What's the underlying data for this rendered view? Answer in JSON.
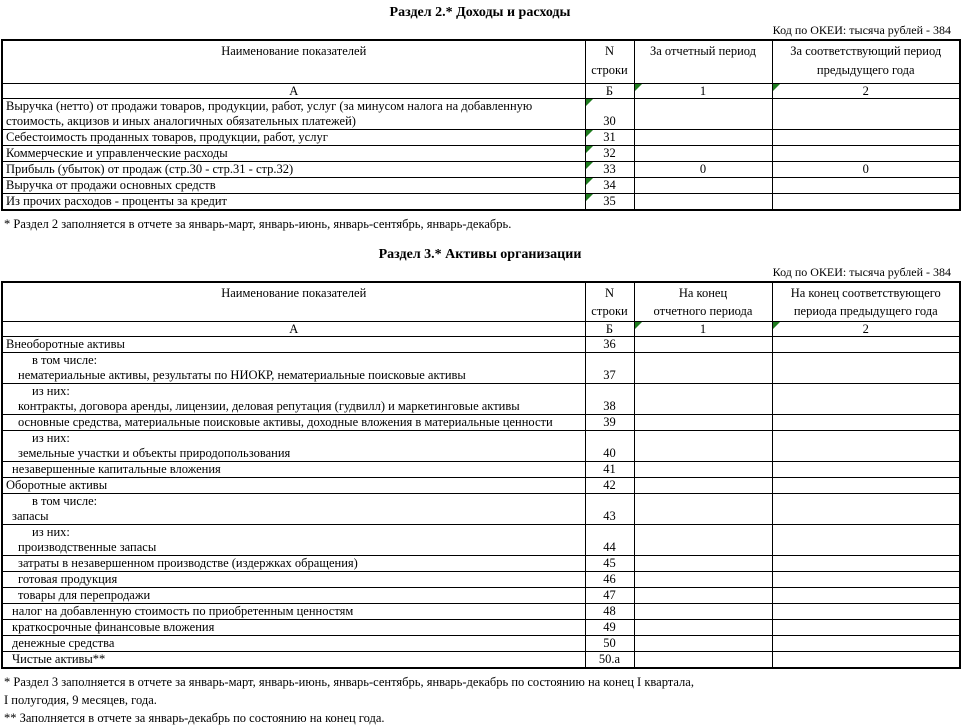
{
  "colors": {
    "triangle_green": "#1e7b1e",
    "border": "#000000",
    "background": "#ffffff",
    "text": "#000000"
  },
  "section2": {
    "title": "Раздел 2.* Доходы и расходы",
    "okei_note": "Код по ОКЕИ: тысяча рублей - 384",
    "columns": {
      "name": "Наименование показателей",
      "code_l1": "N",
      "code_l2": "строки",
      "col1_l1": "За отчетный период",
      "col1_l2": "",
      "col2_l1": "За соответствующий период",
      "col2_l2": "предыдущего года"
    },
    "letter_row": [
      "А",
      "Б",
      "1",
      "2"
    ],
    "code_triangles": true,
    "rows": [
      {
        "lines": [
          {
            "t": "Выручка (нетто) от продажи товаров, продукции, работ, услуг (за минусом налога на добавленную",
            "i": 0
          },
          {
            "t": "стоимость, акцизов и иных аналогичных обязательных платежей)",
            "i": 0
          }
        ],
        "code": "30",
        "v1": "",
        "v2": ""
      },
      {
        "lines": [
          {
            "t": "Себестоимость проданных товаров, продукции, работ, услуг",
            "i": 0
          }
        ],
        "code": "31",
        "v1": "",
        "v2": ""
      },
      {
        "lines": [
          {
            "t": "Коммерческие и управленческие расходы",
            "i": 0
          }
        ],
        "code": "32",
        "v1": "",
        "v2": ""
      },
      {
        "lines": [
          {
            "t": "Прибыль (убыток) от продаж (стр.30 - стр.31 - стр.32)",
            "i": 0
          }
        ],
        "code": "33",
        "v1": "0",
        "v2": "0"
      },
      {
        "lines": [
          {
            "t": "Выручка от продажи основных средств",
            "i": 0
          }
        ],
        "code": "34",
        "v1": "",
        "v2": ""
      },
      {
        "lines": [
          {
            "t": "Из прочих расходов - проценты за кредит",
            "i": 0
          }
        ],
        "code": "35",
        "v1": "",
        "v2": ""
      }
    ],
    "footnote_lines": [
      "* Раздел 2 заполняется в отчете за январь-март, январь-июнь, январь-сентябрь, январь-декабрь."
    ]
  },
  "section3": {
    "title": "Раздел 3.* Активы организации",
    "okei_note": "Код по ОКЕИ: тысяча рублей - 384",
    "columns": {
      "name": "Наименование показателей",
      "code_l1": "N",
      "code_l2": "строки",
      "col1_l1": "На конец",
      "col1_l2": "отчетного периода",
      "col2_l1": "На конец  соответствующего",
      "col2_l2": "периода предыдущего года"
    },
    "letter_row": [
      "А",
      "Б",
      "1",
      "2"
    ],
    "code_triangles": false,
    "rows": [
      {
        "lines": [
          {
            "t": "Внеоборотные активы",
            "i": 0
          }
        ],
        "code": "36",
        "v1": "",
        "v2": ""
      },
      {
        "lines": [
          {
            "t": "в том числе:",
            "i": 3
          },
          {
            "t": "нематериальные активы, результаты по НИОКР, нематериальные поисковые активы",
            "i": 2
          }
        ],
        "code": "37",
        "v1": "",
        "v2": ""
      },
      {
        "lines": [
          {
            "t": "из них:",
            "i": 3
          },
          {
            "t": "контракты, договора аренды, лицензии, деловая репутация (гудвилл) и маркетинговые активы",
            "i": 2
          }
        ],
        "code": "38",
        "v1": "",
        "v2": ""
      },
      {
        "lines": [
          {
            "t": "основные средства, материальные поисковые активы, доходные вложения в материальные ценности",
            "i": 2
          }
        ],
        "code": "39",
        "v1": "",
        "v2": ""
      },
      {
        "lines": [
          {
            "t": "из них:",
            "i": 3
          },
          {
            "t": "земельные участки и объекты природопользования",
            "i": 2
          }
        ],
        "code": "40",
        "v1": "",
        "v2": ""
      },
      {
        "lines": [
          {
            "t": "незавершенные капитальные вложения",
            "i": 1
          }
        ],
        "code": "41",
        "v1": "",
        "v2": ""
      },
      {
        "lines": [
          {
            "t": "Оборотные активы",
            "i": 0
          }
        ],
        "code": "42",
        "v1": "",
        "v2": ""
      },
      {
        "lines": [
          {
            "t": "в том числе:",
            "i": 3
          },
          {
            "t": "запасы",
            "i": 1
          }
        ],
        "code": "43",
        "v1": "",
        "v2": ""
      },
      {
        "lines": [
          {
            "t": "из них:",
            "i": 3
          },
          {
            "t": "производственные запасы",
            "i": 2
          }
        ],
        "code": "44",
        "v1": "",
        "v2": ""
      },
      {
        "lines": [
          {
            "t": "затраты в незавершенном производстве (издержках обращения)",
            "i": 2
          }
        ],
        "code": "45",
        "v1": "",
        "v2": ""
      },
      {
        "lines": [
          {
            "t": "готовая продукция",
            "i": 2
          }
        ],
        "code": "46",
        "v1": "",
        "v2": ""
      },
      {
        "lines": [
          {
            "t": "товары для перепродажи",
            "i": 2
          }
        ],
        "code": "47",
        "v1": "",
        "v2": ""
      },
      {
        "lines": [
          {
            "t": "налог на добавленную стоимость по приобретенным ценностям",
            "i": 1
          }
        ],
        "code": "48",
        "v1": "",
        "v2": ""
      },
      {
        "lines": [
          {
            "t": "краткосрочные финансовые вложения",
            "i": 1
          }
        ],
        "code": "49",
        "v1": "",
        "v2": ""
      },
      {
        "lines": [
          {
            "t": "денежные средства",
            "i": 1
          }
        ],
        "code": "50",
        "v1": "",
        "v2": ""
      },
      {
        "lines": [
          {
            "t": "Чистые активы**",
            "i": 1
          }
        ],
        "code": "50.а",
        "v1": "",
        "v2": ""
      }
    ],
    "footnote_lines": [
      "* Раздел 3 заполняется в отчете за январь-март, январь-июнь, январь-сентябрь, январь-декабрь по состоянию на конец  I квартала,",
      "I полугодия, 9 месяцев, года.",
      "** Заполняется в отчете за январь-декабрь по состоянию на конец года."
    ]
  }
}
